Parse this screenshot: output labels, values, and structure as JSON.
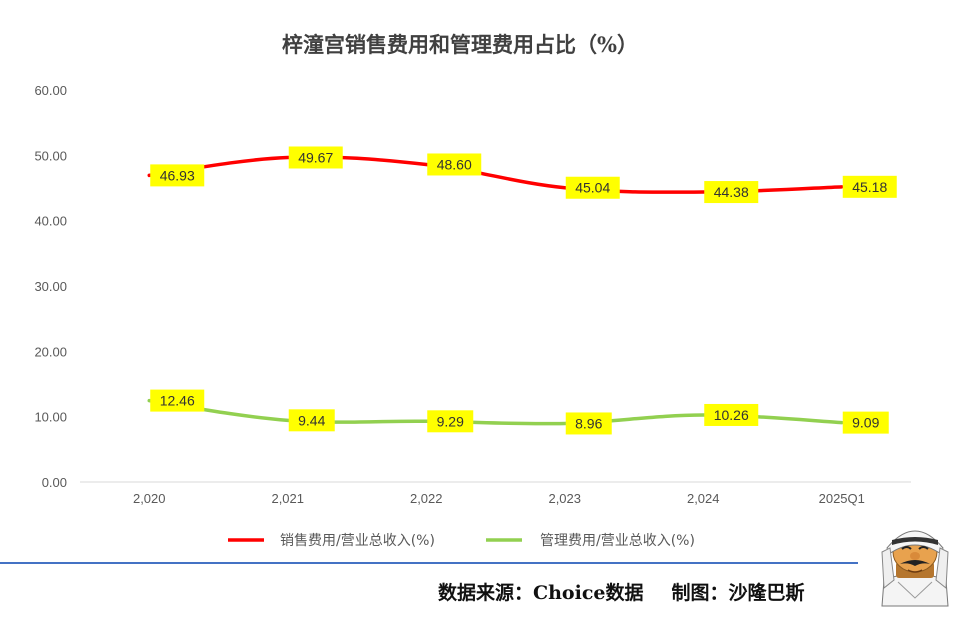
{
  "chart_data": {
    "type": "line",
    "title": "梓潼宫销售费用和管理费用占比（%）",
    "categories": [
      "2,020",
      "2,021",
      "2,022",
      "2,023",
      "2,024",
      "2025Q1"
    ],
    "ylim": [
      0,
      60
    ],
    "yticks": [
      "0.00",
      "10.00",
      "20.00",
      "30.00",
      "40.00",
      "50.00",
      "60.00"
    ],
    "grid": false,
    "legend_position": "bottom",
    "series": [
      {
        "name": "销售费用/营业总收入(%)",
        "color": "#ff0000",
        "values": [
          46.93,
          49.67,
          48.6,
          45.04,
          44.38,
          45.18
        ],
        "labels": [
          "46.93",
          "49.67",
          "48.60",
          "45.04",
          "44.38",
          "45.18"
        ]
      },
      {
        "name": "管理费用/营业总收入(%)",
        "color": "#92d050",
        "values": [
          12.46,
          9.44,
          9.29,
          8.96,
          10.26,
          9.09
        ],
        "labels": [
          "12.46",
          "9.44",
          "9.29",
          "8.96",
          "10.26",
          "9.09"
        ]
      }
    ],
    "label_background": "#ffff00"
  },
  "footer": {
    "source": "数据来源：Choice数据",
    "author": "制图：沙隆巴斯"
  },
  "mascot": {
    "icon": "cartoon-man-headscarf-icon"
  }
}
